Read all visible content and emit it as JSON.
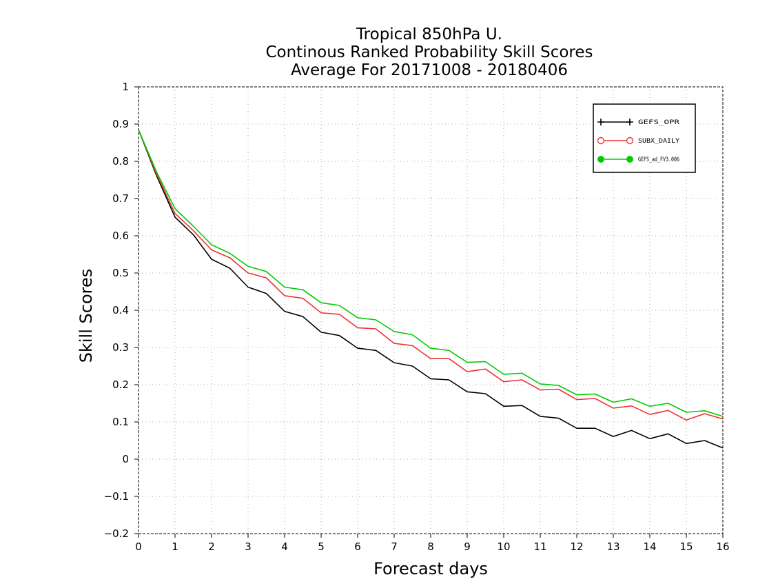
{
  "chart_data": {
    "type": "line",
    "title": [
      "Tropical 850hPa U.",
      "Continous Ranked Probability Skill Scores",
      "Average For 20171008 - 20180406"
    ],
    "xlabel": "Forecast days",
    "ylabel": "Skill Scores",
    "xlim": [
      0,
      16
    ],
    "ylim": [
      -0.2,
      1
    ],
    "x_ticks": [
      0,
      1,
      2,
      3,
      4,
      5,
      6,
      7,
      8,
      9,
      10,
      11,
      12,
      13,
      14,
      15,
      16
    ],
    "y_ticks": [
      -0.2,
      -0.1,
      0,
      0.1,
      0.2,
      0.3,
      0.4,
      0.5,
      0.6,
      0.7,
      0.8,
      0.9,
      1
    ],
    "y_tick_labels": [
      "−0.2",
      "−0.1",
      "0",
      "0.1",
      "0.2",
      "0.3",
      "0.4",
      "0.5",
      "0.6",
      "0.7",
      "0.8",
      "0.9",
      "1"
    ],
    "grid": true,
    "legend_position": "top-right",
    "x": [
      0,
      0.5,
      1,
      1.5,
      2,
      2.5,
      3,
      3.5,
      4,
      4.5,
      5,
      5.5,
      6,
      6.5,
      7,
      7.5,
      8,
      8.5,
      9,
      9.5,
      10,
      10.5,
      11,
      11.5,
      12,
      12.5,
      13,
      13.5,
      14,
      14.5,
      15,
      15.5,
      16
    ],
    "series": [
      {
        "name": "GEFS_OPR",
        "color": "#000000",
        "marker": "plus",
        "values": [
          0.885,
          0.76,
          0.65,
          0.603,
          0.537,
          0.513,
          0.462,
          0.445,
          0.397,
          0.383,
          0.341,
          0.332,
          0.298,
          0.292,
          0.259,
          0.25,
          0.216,
          0.213,
          0.181,
          0.176,
          0.142,
          0.144,
          0.115,
          0.11,
          0.083,
          0.083,
          0.061,
          0.077,
          0.055,
          0.068,
          0.042,
          0.05,
          0.03
        ]
      },
      {
        "name": "SUBX_DAILY",
        "color": "#ee3333",
        "marker": "open-circle",
        "values": [
          0.885,
          0.765,
          0.66,
          0.614,
          0.562,
          0.541,
          0.5,
          0.487,
          0.439,
          0.432,
          0.393,
          0.389,
          0.353,
          0.35,
          0.311,
          0.305,
          0.27,
          0.27,
          0.235,
          0.242,
          0.208,
          0.213,
          0.186,
          0.188,
          0.16,
          0.163,
          0.137,
          0.143,
          0.12,
          0.131,
          0.105,
          0.122,
          0.108
        ]
      },
      {
        "name": "GEFS_ad_FV3.006",
        "color": "#00cc00",
        "marker": "filled-circle",
        "values": [
          0.885,
          0.77,
          0.673,
          0.626,
          0.576,
          0.553,
          0.518,
          0.504,
          0.462,
          0.455,
          0.42,
          0.413,
          0.38,
          0.374,
          0.343,
          0.334,
          0.298,
          0.292,
          0.26,
          0.262,
          0.228,
          0.231,
          0.202,
          0.198,
          0.173,
          0.175,
          0.153,
          0.162,
          0.142,
          0.15,
          0.126,
          0.13,
          0.115
        ]
      }
    ]
  }
}
